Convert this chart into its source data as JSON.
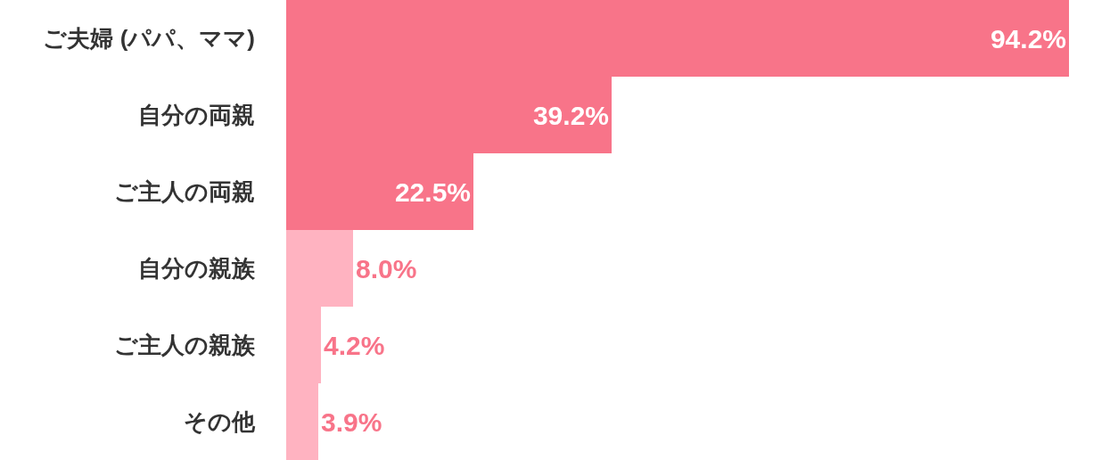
{
  "chart_data": {
    "type": "bar",
    "orientation": "horizontal",
    "data_labels": true,
    "categories": [
      "ご夫婦 (パパ、ママ)",
      "自分の両親",
      "ご主人の両親",
      "自分の親族",
      "ご主人の親族",
      "その他"
    ],
    "values": [
      94.2,
      39.2,
      22.5,
      8.0,
      4.2,
      3.9
    ],
    "value_labels": [
      "94.2%",
      "39.2%",
      "22.5%",
      "8.0%",
      "4.2%",
      "3.9%"
    ],
    "colors": [
      "#f87489",
      "#f87489",
      "#f87489",
      "#ffb3c1",
      "#ffb3c1",
      "#ffb3c1"
    ],
    "grid": false,
    "legend": false
  }
}
